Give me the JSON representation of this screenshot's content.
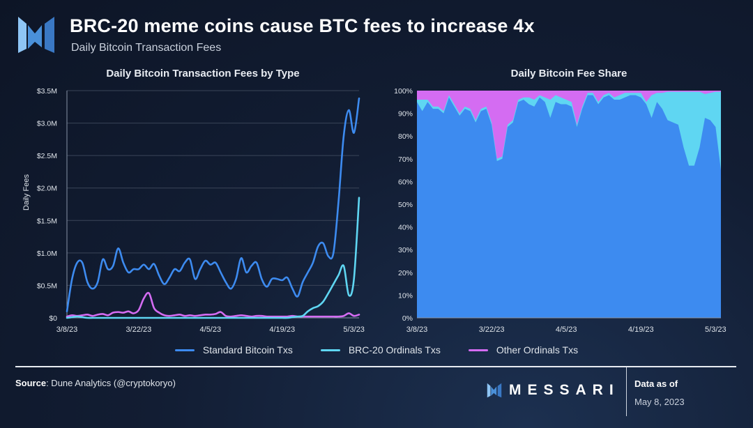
{
  "header": {
    "title": "BRC-20 meme coins cause BTC fees to increase 4x",
    "subtitle": "Daily Bitcoin Transaction Fees"
  },
  "colors": {
    "standard": "#3d8bf0",
    "brc20": "#5fd6f2",
    "other": "#d46cf2"
  },
  "legend": [
    "Standard Bitcoin Txs",
    "BRC-20 Ordinals Txs",
    "Other Ordinals Txs"
  ],
  "chart_data": [
    {
      "type": "line",
      "title": "Daily Bitcoin Transaction Fees by Type",
      "ylabel": "Daily Fees",
      "xlabel": "",
      "x_start": "3/8/23",
      "x_ticks": [
        "3/8/23",
        "3/22/23",
        "4/5/23",
        "4/19/23",
        "5/3/23"
      ],
      "y_ticks": [
        "$0",
        "$0.5M",
        "$1.0M",
        "$1.5M",
        "$2.0M",
        "$2.5M",
        "$3.0M",
        "$3.5M"
      ],
      "ylim": [
        0,
        3.5
      ],
      "y_unit": "$M",
      "grid": true,
      "series": [
        {
          "name": "Standard Bitcoin Txs",
          "values": [
            0.1,
            0.6,
            0.85,
            0.85,
            0.55,
            0.45,
            0.55,
            0.9,
            0.75,
            0.8,
            1.07,
            0.85,
            0.7,
            0.75,
            0.75,
            0.82,
            0.75,
            0.83,
            0.65,
            0.52,
            0.62,
            0.75,
            0.72,
            0.85,
            0.9,
            0.6,
            0.75,
            0.88,
            0.82,
            0.85,
            0.7,
            0.55,
            0.45,
            0.6,
            0.92,
            0.7,
            0.8,
            0.85,
            0.6,
            0.48,
            0.6,
            0.6,
            0.58,
            0.62,
            0.45,
            0.33,
            0.55,
            0.7,
            0.85,
            1.1,
            1.15,
            0.95,
            1.0,
            1.8,
            2.8,
            3.2,
            2.85,
            3.38
          ]
        },
        {
          "name": "BRC-20 Ordinals Txs",
          "values": [
            0,
            0.01,
            0.02,
            0.01,
            0,
            0,
            0,
            0,
            0,
            0,
            0,
            0,
            0,
            0,
            0,
            0,
            0,
            0,
            0,
            0,
            0,
            0,
            0,
            0,
            0,
            0,
            0,
            0,
            0,
            0,
            0,
            0,
            0,
            0,
            0,
            0,
            0,
            0,
            0,
            0,
            0,
            0,
            0,
            0,
            0.01,
            0.02,
            0.03,
            0.1,
            0.15,
            0.18,
            0.25,
            0.38,
            0.52,
            0.66,
            0.8,
            0.35,
            0.6,
            1.85
          ]
        },
        {
          "name": "Other Ordinals Txs",
          "values": [
            0.02,
            0.04,
            0.03,
            0.04,
            0.05,
            0.03,
            0.05,
            0.06,
            0.04,
            0.08,
            0.09,
            0.08,
            0.1,
            0.07,
            0.12,
            0.3,
            0.38,
            0.15,
            0.08,
            0.04,
            0.03,
            0.04,
            0.05,
            0.03,
            0.04,
            0.03,
            0.04,
            0.05,
            0.05,
            0.06,
            0.09,
            0.03,
            0.02,
            0.03,
            0.04,
            0.03,
            0.02,
            0.03,
            0.03,
            0.02,
            0.02,
            0.02,
            0.02,
            0.02,
            0.03,
            0.02,
            0.02,
            0.02,
            0.02,
            0.02,
            0.02,
            0.02,
            0.02,
            0.02,
            0.03,
            0.07,
            0.03,
            0.05
          ]
        }
      ]
    },
    {
      "type": "area",
      "stacked": true,
      "title": "Daily Bitcoin Fee Share",
      "x_start": "3/8/23",
      "x_ticks": [
        "3/8/23",
        "3/22/23",
        "4/5/23",
        "4/19/23",
        "5/3/23"
      ],
      "y_ticks": [
        "0%",
        "10%",
        "20%",
        "30%",
        "40%",
        "50%",
        "60%",
        "70%",
        "80%",
        "90%",
        "100%"
      ],
      "ylim": [
        0,
        100
      ],
      "y_unit": "%",
      "series": [
        {
          "name": "Standard Bitcoin Txs",
          "values": [
            95,
            91,
            95,
            92,
            92,
            90,
            97,
            93,
            89,
            92,
            91,
            86,
            91,
            92,
            85,
            69,
            70,
            84,
            86,
            95,
            96,
            94,
            93,
            97,
            95,
            88,
            95,
            94,
            94,
            93,
            84,
            92,
            98,
            98,
            94,
            97,
            98,
            96,
            96,
            97,
            98,
            98,
            97,
            94,
            88,
            95,
            92,
            87,
            86,
            85,
            75,
            67,
            67,
            75,
            88,
            87,
            84,
            65
          ]
        },
        {
          "name": "Other Ordinals Txs",
          "values": [
            4,
            4,
            4,
            7,
            7,
            9,
            2,
            6,
            10,
            7,
            8,
            13,
            8,
            7,
            14,
            30,
            29,
            15,
            13,
            4,
            3,
            3,
            4,
            2,
            3,
            4,
            2,
            3,
            4,
            5,
            15,
            7,
            1,
            1,
            5,
            2,
            1,
            3,
            2,
            1,
            1,
            1,
            1,
            5,
            2,
            1,
            1,
            0.5,
            0.5,
            0.5,
            0.5,
            0.5,
            0.5,
            0.5,
            1.5,
            1,
            0.5,
            0.5
          ]
        },
        {
          "name": "BRC-20 Ordinals Txs",
          "values": "remainder to 100%"
        }
      ]
    }
  ],
  "footer": {
    "source_label": "Source",
    "source_text": ": Dune Analytics (@cryptokoryo)",
    "brand": "MESSARI",
    "as_of_label": "Data as of",
    "as_of_date": "May 8, 2023"
  }
}
